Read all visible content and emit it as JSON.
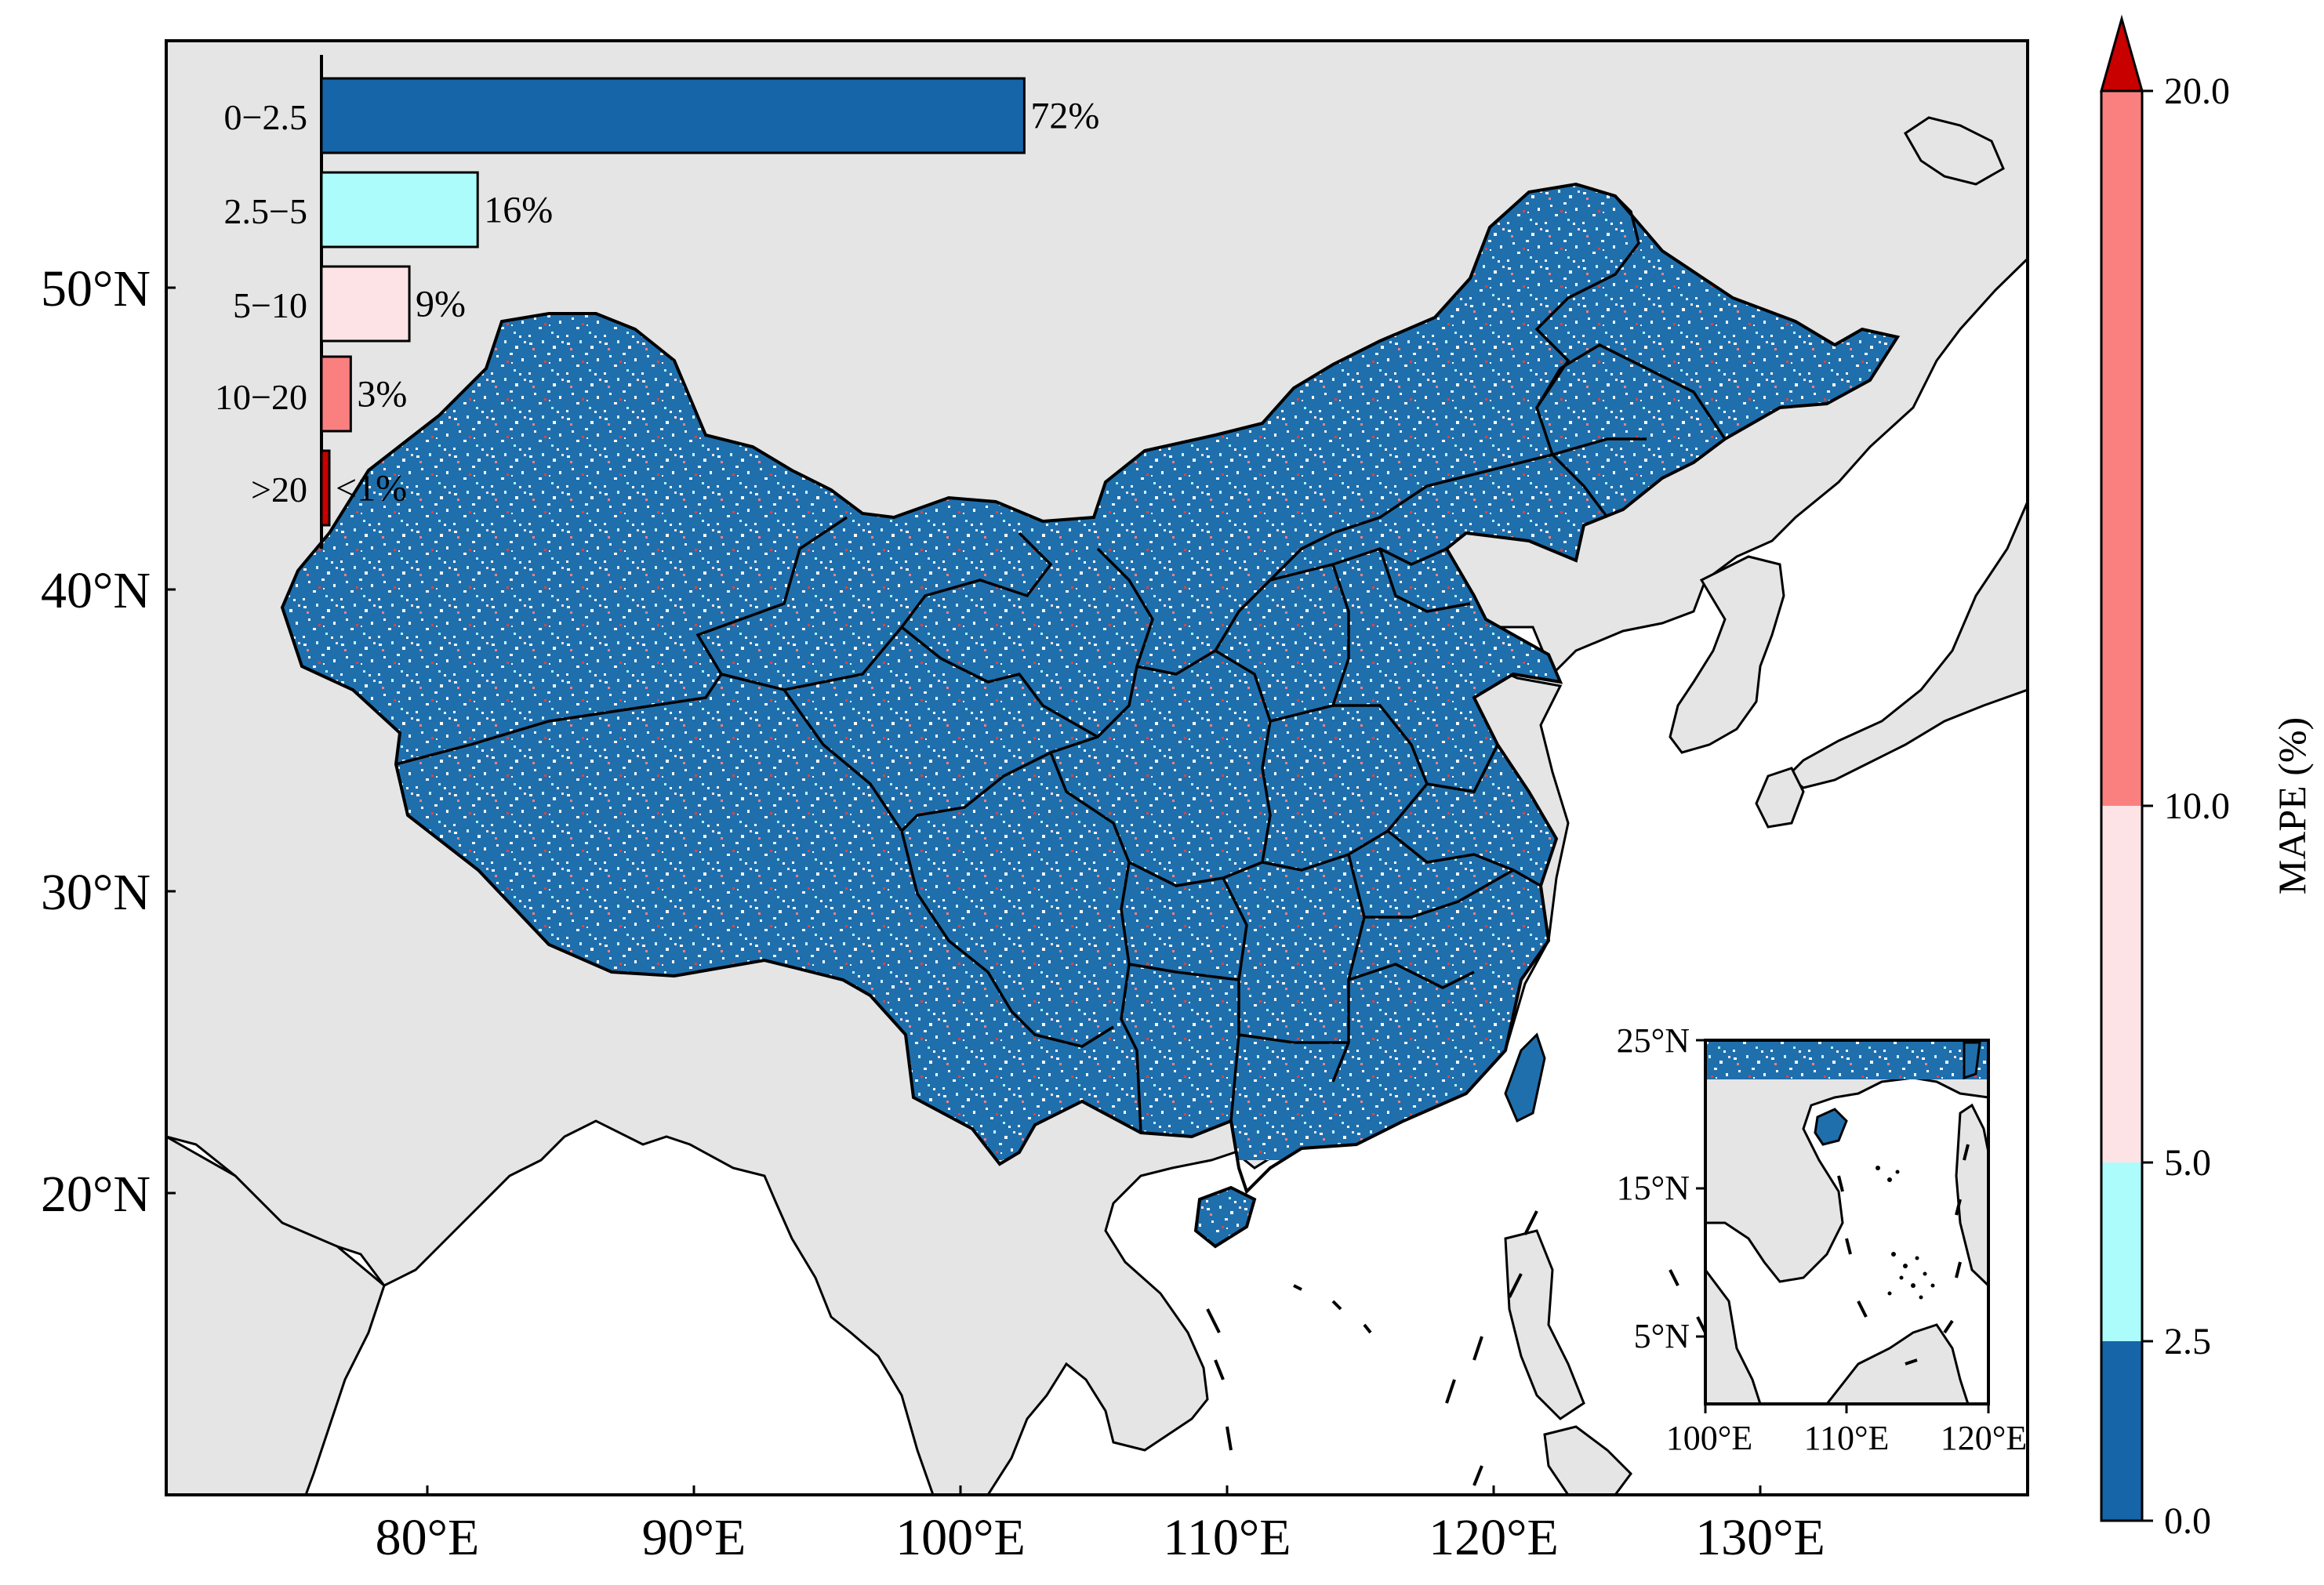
{
  "map": {
    "lon_ticks": [
      "80°E",
      "90°E",
      "100°E",
      "110°E",
      "120°E",
      "130°E"
    ],
    "lat_ticks": [
      "20°N",
      "30°N",
      "40°N",
      "50°N"
    ],
    "colors": {
      "ocean": "#ffffff",
      "land": "#e5e5e5",
      "china_base": "#1f6fad",
      "coast": "#000000"
    }
  },
  "inset": {
    "lat_ticks": [
      "25°N",
      "15°N",
      "5°N"
    ],
    "lon_ticks": [
      "100°E",
      "110°E",
      "120°E"
    ]
  },
  "histogram": {
    "categories": [
      "0−2.5",
      "2.5−5",
      "5−10",
      "10−20",
      ">20"
    ],
    "percent_values": [
      72,
      16,
      9,
      3,
      0.5
    ],
    "labels": [
      "72%",
      "16%",
      "9%",
      "3%",
      "<1%"
    ],
    "colors": [
      "#1565a8",
      "#adfcfc",
      "#fde3e6",
      "#fa8080",
      "#c80000"
    ]
  },
  "colorbar": {
    "label": "MAPE (%)",
    "ticks": [
      "0.0",
      "2.5",
      "5.0",
      "10.0",
      "20.0"
    ],
    "colors": [
      "#1565a8",
      "#adfcfc",
      "#fde3e6",
      "#fa8080"
    ],
    "extend_color": "#c80000"
  }
}
